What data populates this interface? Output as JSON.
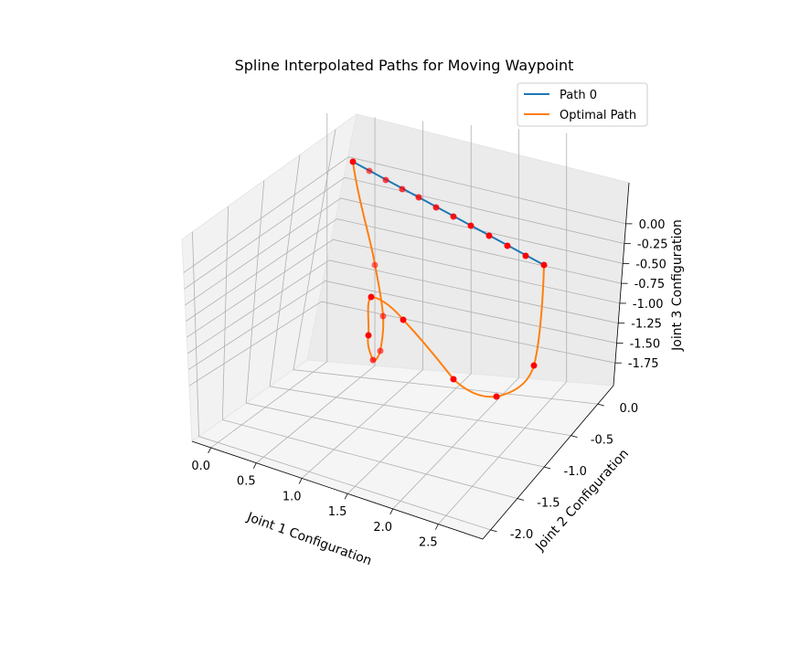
{
  "chart_data": {
    "type": "line",
    "projection": "3d",
    "title": "Spline Interpolated Paths for Moving Waypoint",
    "xlabel": "Joint 1 Configuration",
    "ylabel": "Joint 2 Configuration",
    "zlabel": "Joint 3 Configuration",
    "xticks": [
      "0.0",
      "0.5",
      "1.0",
      "1.5",
      "2.0",
      "2.5"
    ],
    "yticks": [
      "0.0",
      "-0.5",
      "-1.0",
      "-1.5",
      "-2.0"
    ],
    "zticks": [
      "0.00",
      "-0.25",
      "-0.50",
      "-0.75",
      "-1.00",
      "-1.25",
      "-1.50",
      "-1.75"
    ],
    "grid": true,
    "legend_position": "top-right",
    "colors": {
      "path0": "#1f77b4",
      "optimal": "#ff7f0e",
      "waypoints": "#ff0000"
    },
    "series": [
      {
        "name": "Path 0"
      },
      {
        "name": "Optimal Path"
      }
    ]
  }
}
